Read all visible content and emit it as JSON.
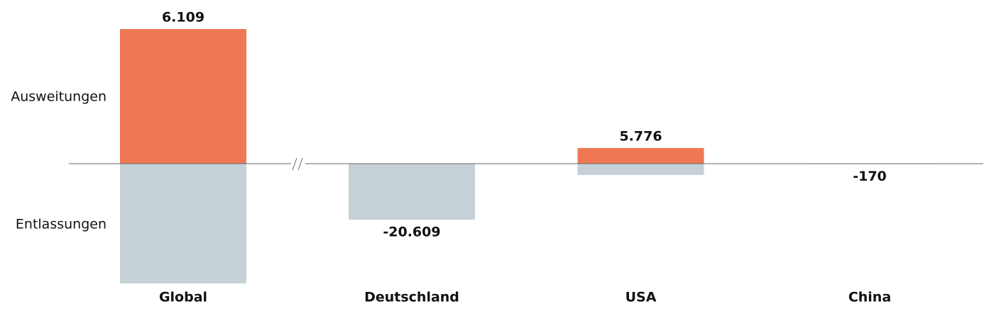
{
  "chart_data": [
    {
      "type": "bar",
      "categories": [
        "Global"
      ],
      "series": [
        {
          "name": "Ausweitungen",
          "color": "#f07753",
          "values": [
            6109
          ],
          "value_labels": [
            "6.109"
          ]
        },
        {
          "name": "Entlassungen",
          "color": "#c5d0d7",
          "values": [
            -5434
          ],
          "value_labels": [
            null
          ]
        }
      ],
      "ylim": [
        -5434,
        6784
      ]
    },
    {
      "type": "bar",
      "categories": [
        "Deutschland",
        "USA",
        "China"
      ],
      "series": [
        {
          "name": "Ausweitungen",
          "color": "#f07753",
          "values": [
            null,
            5776,
            null
          ],
          "value_labels": [
            null,
            "5.776",
            null
          ]
        },
        {
          "name": "Entlassungen",
          "color": "#c5d0d7",
          "values": [
            -20609,
            -4170,
            -170
          ],
          "value_labels": [
            "-20.609",
            null,
            "-170"
          ]
        }
      ],
      "ylim": [
        -44089,
        55046
      ]
    }
  ]
}
